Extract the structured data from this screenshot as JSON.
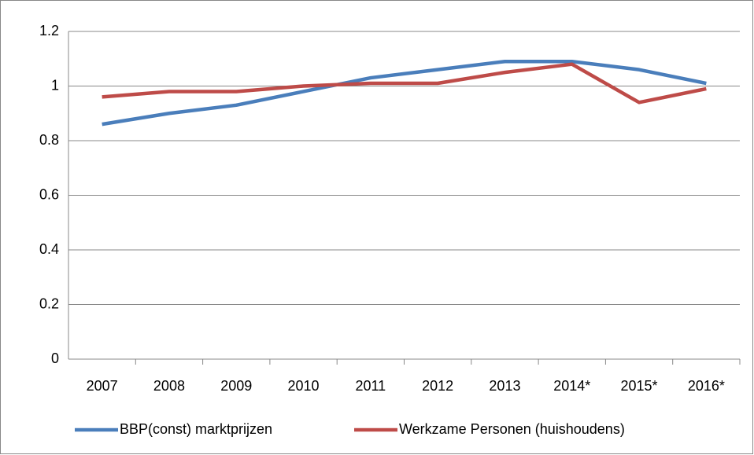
{
  "chart_data": {
    "type": "line",
    "categories": [
      "2007",
      "2008",
      "2009",
      "2010",
      "2011",
      "2012",
      "2013",
      "2014*",
      "2015*",
      "2016*"
    ],
    "series": [
      {
        "name": "BBP(const) marktprijzen",
        "color": "#4a7ebb",
        "values": [
          0.86,
          0.9,
          0.93,
          0.98,
          1.03,
          1.06,
          1.09,
          1.09,
          1.06,
          1.01
        ]
      },
      {
        "name": "Werkzame Personen (huishoudens)",
        "color": "#be4b48",
        "values": [
          0.96,
          0.98,
          0.98,
          1.0,
          1.01,
          1.01,
          1.05,
          1.08,
          0.94,
          0.99
        ]
      }
    ],
    "ylim": [
      0,
      1.2
    ],
    "yticks": [
      0,
      0.2,
      0.4,
      0.6,
      0.8,
      1,
      1.2
    ],
    "grid": true,
    "legend": "bottom"
  }
}
